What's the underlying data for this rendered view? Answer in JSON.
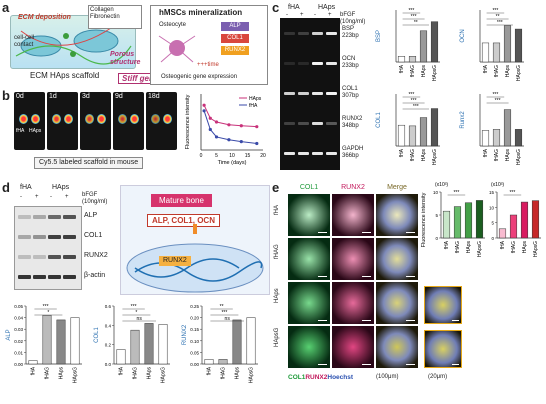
{
  "panels": {
    "a": "a",
    "b": "b",
    "c": "c",
    "d": "d",
    "e": "e"
  },
  "a": {
    "ecm_deposition": "ECM deposition",
    "legend": [
      "Collagen",
      "Fibronectin"
    ],
    "cell_contact": "cell-cell contact",
    "scaffold_label": "ECM HAps scaffold",
    "porous": "Porous structure",
    "stiff": "Stiff gels",
    "hmsc_title": "hMSCs mineralization",
    "osteocyte": "Osteocyte",
    "genes": [
      "ALP",
      "COL1",
      "RUNX2"
    ],
    "time": "+++time",
    "osteo_expr": "Osteogenic gene expression"
  },
  "b": {
    "days": [
      "0d",
      "1d",
      "3d",
      "9d",
      "18d"
    ],
    "mouse_labels": [
      "fHA",
      "HAps"
    ],
    "caption": "Cy5.5 labeled scaffold in mouse",
    "chart_data": {
      "type": "line",
      "x": [
        1,
        3,
        5,
        9,
        13,
        18
      ],
      "series": [
        {
          "name": "HAps",
          "color": "#c8327a",
          "values": [
            2.4,
            1.7,
            1.5,
            1.35,
            1.3,
            1.25
          ]
        },
        {
          "name": "fHA",
          "color": "#3a4aa8",
          "values": [
            2.1,
            1.1,
            0.7,
            0.55,
            0.45,
            0.35
          ]
        }
      ],
      "xlabel": "Time (days)",
      "ylabel": "Fluorescence intensity",
      "xticks": [
        "0",
        "5",
        "10",
        "15",
        "20"
      ],
      "xlim": [
        0,
        20
      ],
      "ylim": [
        0,
        3
      ]
    }
  },
  "c": {
    "groups": [
      "fHA",
      "HAps"
    ],
    "signs": [
      "-",
      "+",
      "-",
      "+"
    ],
    "bfgf": "bFGF (10ng/ml)",
    "bands": [
      "BSP 223bp",
      "OCN 233bp",
      "COL1 307bp",
      "RUNX2 348bp",
      "GAPDH 366bp"
    ],
    "charts": [
      {
        "ylabel": "BSP",
        "values": [
          0.22,
          0.22,
          1.2,
          1.55
        ],
        "ylim": [
          0,
          2
        ],
        "sig": [
          "***",
          "***",
          "**"
        ]
      },
      {
        "ylabel": "OCN",
        "values": [
          0.55,
          0.55,
          1.05,
          0.95
        ],
        "ylim": [
          0,
          1.5
        ],
        "sig": [
          "***",
          "**",
          "***"
        ]
      },
      {
        "ylabel": "COL1",
        "values": [
          0.6,
          0.58,
          0.82,
          1.08
        ],
        "ylim": [
          0,
          1.5
        ],
        "sig": [
          "***",
          "***",
          "***"
        ]
      },
      {
        "ylabel": "Runx2",
        "values": [
          0.45,
          0.48,
          1.05,
          0.48
        ],
        "ylim": [
          0,
          1.5
        ],
        "sig": [
          "***",
          "***"
        ]
      }
    ],
    "xcats": [
      "fHA",
      "fHAG",
      "HAps",
      "HApsG"
    ]
  },
  "d": {
    "groups": [
      "fHA",
      "HAps"
    ],
    "signs": [
      "-",
      "+",
      "-",
      "+"
    ],
    "bfgf": "bFGF (10ng/ml)",
    "bands": [
      "ALP",
      "COL1",
      "RUNX2",
      "β-actin"
    ],
    "mature": "Mature bone",
    "targets": "ALP, COL1, OCN",
    "runx": "RUNX2",
    "charts": [
      {
        "ylabel": "ALP",
        "values": [
          0.003,
          0.042,
          0.038,
          0.04
        ],
        "ylim": [
          0,
          0.05
        ],
        "ticks": [
          "0.00",
          "0.01",
          "0.02",
          "0.03",
          "0.04",
          "0.05"
        ],
        "sig": [
          "***",
          "*"
        ]
      },
      {
        "ylabel": "COL1",
        "values": [
          0.15,
          0.35,
          0.42,
          0.41
        ],
        "ylim": [
          0,
          0.6
        ],
        "ticks": [
          "0.0",
          "0.2",
          "0.4",
          "0.6"
        ],
        "sig": [
          "***",
          "*",
          "ns"
        ]
      },
      {
        "ylabel": "RUNX2",
        "values": [
          0.02,
          0.02,
          0.19,
          0.2
        ],
        "ylim": [
          0,
          0.25
        ],
        "ticks": [
          "0.00",
          "0.05",
          "0.10",
          "0.15",
          "0.20",
          "0.25"
        ],
        "sig": [
          "**",
          "***",
          "ns"
        ]
      }
    ],
    "xcats": [
      "fHA",
      "fHAG",
      "HAps",
      "HApsG"
    ]
  },
  "e": {
    "cols": [
      "COL1",
      "RUNX2",
      "Merge"
    ],
    "rows": [
      "fHA",
      "fHAG",
      "HAps",
      "HApsG"
    ],
    "legend": [
      "COL1",
      "RUNX2",
      "Hoechst"
    ],
    "scale1": "(100μm)",
    "scale2": "(20μm)",
    "chart_col": {
      "exp": "(x10³)",
      "values": [
        7,
        8.2,
        9.2,
        9.8
      ],
      "ticks": [
        "0",
        "5",
        "10"
      ],
      "ylim": [
        0,
        12
      ],
      "sig": "***"
    },
    "chart_runx": {
      "exp": "(x10³)",
      "values": [
        3.2,
        8,
        12.5,
        13
      ],
      "ticks": [
        "0",
        "5",
        "10",
        "15"
      ],
      "ylim": [
        0,
        16
      ],
      "sig": "***"
    },
    "ylabel": "Fluorescence intensity",
    "xcats": [
      "fHA",
      "fHAG",
      "HAps",
      "HApsG"
    ]
  }
}
